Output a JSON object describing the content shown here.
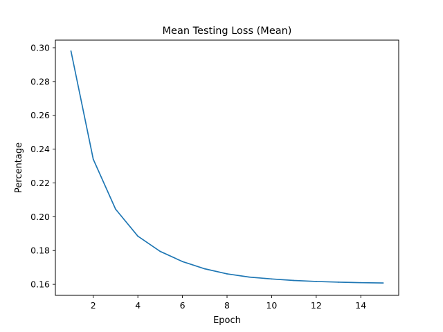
{
  "chart_data": {
    "type": "line",
    "title": "Mean Testing Loss (Mean)",
    "xlabel": "Epoch",
    "ylabel": "Percentage",
    "grid": false,
    "xlim": [
      0.3,
      15.7
    ],
    "ylim": [
      0.1535,
      0.3045
    ],
    "xticks": [
      2,
      4,
      6,
      8,
      10,
      12,
      14
    ],
    "xtick_labels": [
      "2",
      "4",
      "6",
      "8",
      "10",
      "12",
      "14"
    ],
    "yticks": [
      0.16,
      0.18,
      0.2,
      0.22,
      0.24,
      0.26,
      0.28,
      0.3
    ],
    "ytick_labels": [
      "0.16",
      "0.18",
      "0.20",
      "0.22",
      "0.24",
      "0.26",
      "0.28",
      "0.30"
    ],
    "series": [
      {
        "color": "#1f77b4",
        "x": [
          1,
          2,
          3,
          4,
          5,
          6,
          7,
          8,
          9,
          10,
          11,
          12,
          13,
          14,
          15
        ],
        "y": [
          0.298,
          0.234,
          0.2045,
          0.1885,
          0.1795,
          0.1735,
          0.1692,
          0.1662,
          0.1643,
          0.1632,
          0.1623,
          0.1617,
          0.1613,
          0.161,
          0.1608
        ]
      }
    ]
  }
}
